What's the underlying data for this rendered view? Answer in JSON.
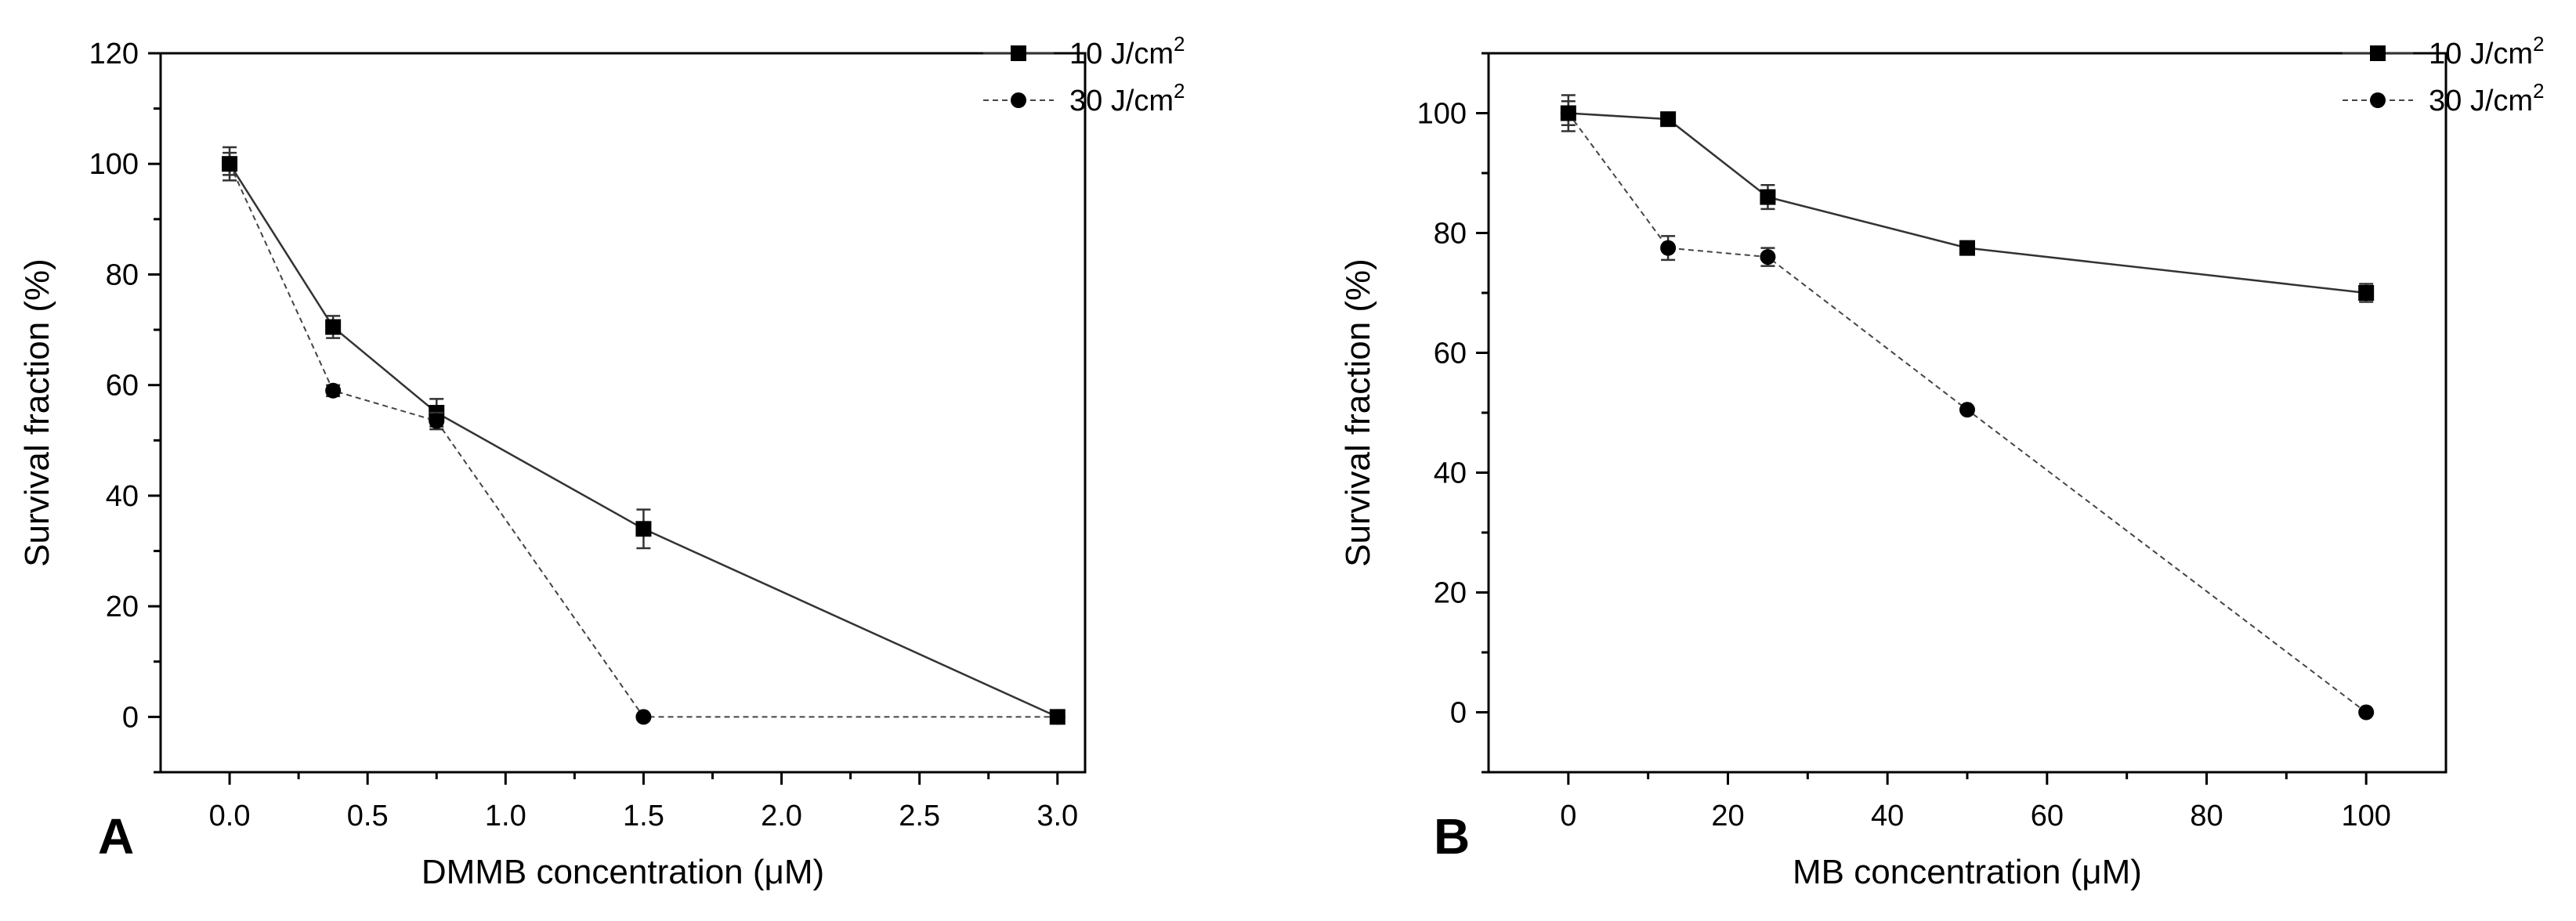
{
  "chart_data": [
    {
      "type": "line",
      "panel_label": "A",
      "title": "",
      "xlabel": "DMMB concentration (μM)",
      "ylabel": "Survival fraction (%)",
      "xlim": [
        -0.25,
        3.1
      ],
      "ylim": [
        -10,
        120
      ],
      "x_ticks": [
        0.0,
        0.5,
        1.0,
        1.5,
        2.0,
        2.5,
        3.0
      ],
      "x_tick_labels": [
        "0.0",
        "0.5",
        "1.0",
        "1.5",
        "2.0",
        "2.5",
        "3.0"
      ],
      "y_ticks": [
        0,
        20,
        40,
        60,
        80,
        100,
        120
      ],
      "y_tick_labels": [
        "0",
        "20",
        "40",
        "60",
        "80",
        "100",
        "120"
      ],
      "legend_position": "top-right",
      "series": [
        {
          "name": "10 J/cm",
          "superscript": "2",
          "marker": "square",
          "line_style": "solid",
          "x": [
            0,
            0.375,
            0.75,
            1.5,
            3.0
          ],
          "values": [
            100,
            70.5,
            55,
            34,
            0
          ],
          "errors": [
            3,
            2,
            2.5,
            3.5,
            1
          ]
        },
        {
          "name": "30 J/cm",
          "superscript": "2",
          "marker": "circle",
          "line_style": "dashed",
          "x": [
            0,
            0.375,
            0.75,
            1.5,
            3.0
          ],
          "values": [
            100,
            59,
            53.5,
            0,
            0
          ],
          "errors": [
            2,
            1,
            1.5,
            0.5,
            0.5
          ]
        }
      ]
    },
    {
      "type": "line",
      "panel_label": "B",
      "title": "",
      "xlabel": "MB concentration (μM)",
      "ylabel": "Survival fraction (%)",
      "xlim": [
        -10,
        110
      ],
      "ylim": [
        -10,
        110
      ],
      "x_ticks": [
        0,
        20,
        40,
        60,
        80,
        100
      ],
      "x_tick_labels": [
        "0",
        "20",
        "40",
        "60",
        "80",
        "100"
      ],
      "y_ticks": [
        0,
        20,
        40,
        60,
        80,
        100
      ],
      "y_tick_labels": [
        "0",
        "20",
        "40",
        "60",
        "80",
        "100"
      ],
      "legend_position": "top-right",
      "series": [
        {
          "name": "10 J/cm",
          "superscript": "2",
          "marker": "square",
          "line_style": "solid",
          "x": [
            0,
            12.5,
            25,
            50,
            100
          ],
          "values": [
            100,
            99,
            86,
            77.5,
            70
          ],
          "errors": [
            3,
            1,
            2,
            1,
            1.5
          ]
        },
        {
          "name": "30 J/cm",
          "superscript": "2",
          "marker": "circle",
          "line_style": "dashed",
          "x": [
            0,
            12.5,
            25,
            50,
            100
          ],
          "values": [
            100,
            77.5,
            76,
            50.5,
            0
          ],
          "errors": [
            2,
            2,
            1.5,
            0.5,
            0.5
          ]
        }
      ]
    }
  ]
}
